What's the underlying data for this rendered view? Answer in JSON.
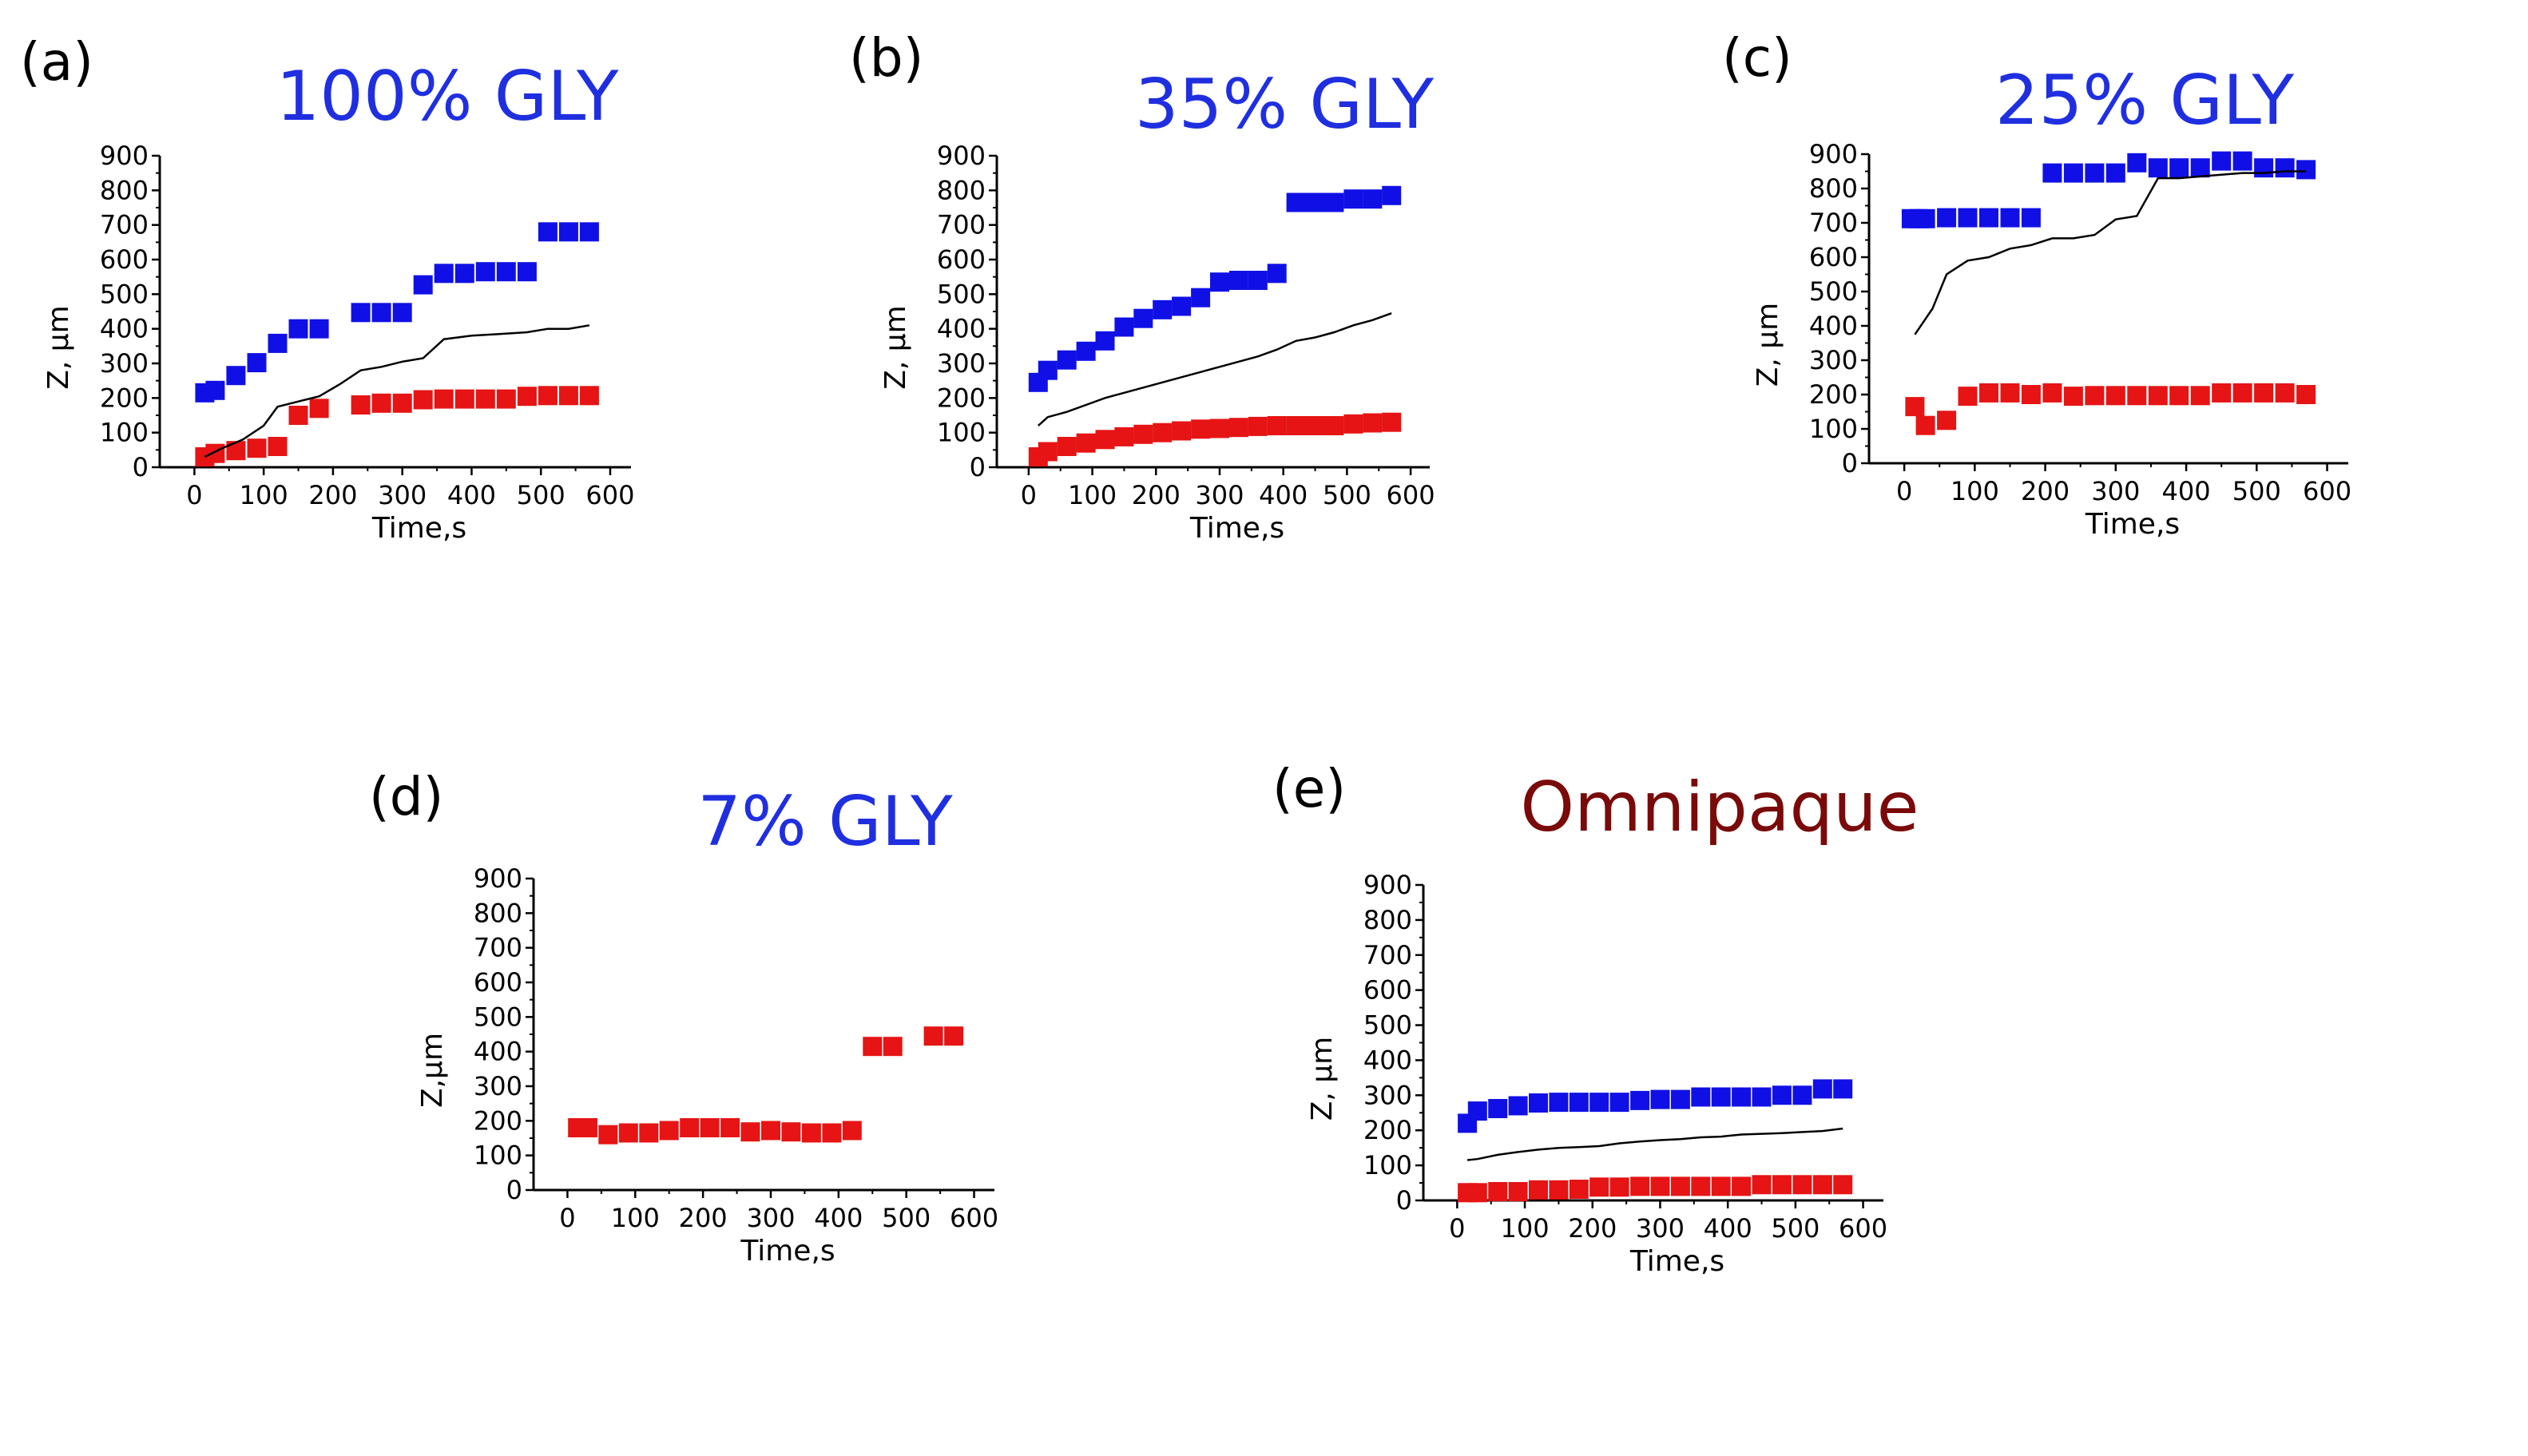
{
  "colors": {
    "blue_series": "#1010e6",
    "red_series": "#e61414",
    "line_series": "#000000",
    "title_blue": "#1f2fe0",
    "title_maroon": "#7a0a0a"
  },
  "chart_data": [
    {
      "type": "scatter",
      "panel": "(a)",
      "title": "100% GLY",
      "title_color": "#1f2fe0",
      "xlabel": "Time,s",
      "ylabel": "Z, µm",
      "xlim": [
        -50,
        630
      ],
      "ylim": [
        0,
        900
      ],
      "xticks": [
        "0",
        "100",
        "200",
        "300",
        "400",
        "500",
        "600"
      ],
      "yticks": [
        "0",
        "100",
        "200",
        "300",
        "400",
        "500",
        "600",
        "700",
        "800",
        "900"
      ],
      "grid": false,
      "series": [
        {
          "name": "upper",
          "kind": "markers",
          "color": "#1010e6",
          "x": [
            15,
            30,
            60,
            90,
            120,
            150,
            180,
            240,
            270,
            300,
            330,
            360,
            390,
            420,
            450,
            480,
            510,
            540,
            570
          ],
          "y": [
            215,
            222,
            265,
            302,
            358,
            400,
            400,
            447,
            447,
            447,
            527,
            560,
            560,
            565,
            565,
            565,
            680,
            680,
            680
          ]
        },
        {
          "name": "lower",
          "kind": "markers",
          "color": "#e61414",
          "x": [
            15,
            30,
            60,
            90,
            120,
            150,
            180,
            240,
            270,
            300,
            330,
            360,
            390,
            420,
            450,
            480,
            510,
            540,
            570
          ],
          "y": [
            30,
            40,
            48,
            55,
            60,
            150,
            170,
            180,
            185,
            185,
            195,
            197,
            197,
            197,
            197,
            205,
            207,
            207,
            207
          ]
        },
        {
          "name": "mean",
          "kind": "line",
          "color": "#000000",
          "x": [
            15,
            40,
            70,
            100,
            120,
            150,
            180,
            210,
            240,
            270,
            300,
            330,
            360,
            400,
            440,
            480,
            510,
            540,
            570
          ],
          "y": [
            30,
            55,
            80,
            120,
            175,
            190,
            205,
            240,
            280,
            290,
            305,
            315,
            370,
            380,
            385,
            390,
            400,
            400,
            410
          ]
        }
      ]
    },
    {
      "type": "scatter",
      "panel": "(b)",
      "title": "35% GLY",
      "title_color": "#1f2fe0",
      "xlabel": "Time,s",
      "ylabel": "Z, µm",
      "xlim": [
        -50,
        630
      ],
      "ylim": [
        0,
        900
      ],
      "xticks": [
        "0",
        "100",
        "200",
        "300",
        "400",
        "500",
        "600"
      ],
      "yticks": [
        "0",
        "100",
        "200",
        "300",
        "400",
        "500",
        "600",
        "700",
        "800",
        "900"
      ],
      "grid": false,
      "series": [
        {
          "name": "upper",
          "kind": "markers",
          "color": "#1010e6",
          "x": [
            15,
            30,
            60,
            90,
            120,
            150,
            180,
            210,
            240,
            270,
            300,
            330,
            360,
            390,
            420,
            450,
            480,
            510,
            540,
            570
          ],
          "y": [
            245,
            280,
            310,
            335,
            365,
            405,
            430,
            455,
            465,
            490,
            535,
            540,
            540,
            560,
            765,
            765,
            765,
            775,
            775,
            785
          ]
        },
        {
          "name": "lower",
          "kind": "markers",
          "color": "#e61414",
          "x": [
            15,
            30,
            60,
            90,
            120,
            150,
            180,
            210,
            240,
            270,
            300,
            330,
            360,
            390,
            420,
            450,
            480,
            510,
            540,
            570
          ],
          "y": [
            30,
            45,
            60,
            70,
            80,
            88,
            95,
            100,
            105,
            110,
            112,
            115,
            118,
            120,
            120,
            120,
            120,
            125,
            128,
            130
          ]
        },
        {
          "name": "mean",
          "kind": "line",
          "color": "#000000",
          "x": [
            15,
            30,
            60,
            90,
            120,
            150,
            180,
            210,
            240,
            270,
            300,
            330,
            360,
            390,
            420,
            450,
            480,
            510,
            540,
            570
          ],
          "y": [
            120,
            145,
            160,
            180,
            200,
            215,
            230,
            245,
            260,
            275,
            290,
            305,
            320,
            340,
            365,
            375,
            390,
            410,
            425,
            445
          ]
        }
      ]
    },
    {
      "type": "scatter",
      "panel": "(c)",
      "title": "25% GLY",
      "title_color": "#1f2fe0",
      "xlabel": "Time,s",
      "ylabel": "Z, µm",
      "xlim": [
        -50,
        630
      ],
      "ylim": [
        0,
        900
      ],
      "xticks": [
        "0",
        "100",
        "200",
        "300",
        "400",
        "500",
        "600"
      ],
      "yticks": [
        "0",
        "100",
        "200",
        "300",
        "400",
        "500",
        "600",
        "700",
        "800",
        "900"
      ],
      "grid": false,
      "series": [
        {
          "name": "upper",
          "kind": "markers",
          "color": "#1010e6",
          "x": [
            10,
            20,
            30,
            60,
            90,
            120,
            150,
            180,
            210,
            240,
            270,
            300,
            330,
            360,
            390,
            420,
            450,
            480,
            510,
            540,
            570
          ],
          "y": [
            712,
            712,
            712,
            715,
            715,
            715,
            715,
            715,
            845,
            845,
            845,
            845,
            875,
            860,
            860,
            860,
            880,
            880,
            860,
            860,
            855
          ]
        },
        {
          "name": "lower",
          "kind": "markers",
          "color": "#e61414",
          "x": [
            15,
            30,
            60,
            90,
            120,
            150,
            180,
            210,
            240,
            270,
            300,
            330,
            360,
            390,
            420,
            450,
            480,
            510,
            540,
            570
          ],
          "y": [
            165,
            110,
            125,
            195,
            205,
            205,
            200,
            205,
            195,
            197,
            197,
            197,
            197,
            197,
            197,
            205,
            205,
            205,
            205,
            200
          ]
        },
        {
          "name": "mean",
          "kind": "line",
          "color": "#000000",
          "x": [
            15,
            40,
            60,
            90,
            120,
            150,
            180,
            210,
            240,
            270,
            300,
            330,
            360,
            390,
            420,
            450,
            480,
            510,
            540,
            570
          ],
          "y": [
            375,
            450,
            550,
            590,
            600,
            625,
            635,
            655,
            655,
            665,
            710,
            720,
            830,
            830,
            835,
            840,
            845,
            845,
            850,
            850
          ]
        }
      ]
    },
    {
      "type": "scatter",
      "panel": "(d)",
      "title": "7% GLY",
      "title_color": "#1f2fe0",
      "xlabel": "Time,s",
      "ylabel": "Z,µm",
      "xlim": [
        -50,
        630
      ],
      "ylim": [
        0,
        900
      ],
      "xticks": [
        "0",
        "100",
        "200",
        "300",
        "400",
        "500",
        "600"
      ],
      "yticks": [
        "0",
        "100",
        "200",
        "300",
        "400",
        "500",
        "600",
        "700",
        "800",
        "900"
      ],
      "grid": false,
      "series": [
        {
          "name": "lower",
          "kind": "markers",
          "color": "#e61414",
          "x": [
            15,
            30,
            60,
            90,
            120,
            150,
            180,
            210,
            240,
            270,
            300,
            330,
            360,
            390,
            420,
            450,
            480,
            540,
            570
          ],
          "y": [
            180,
            180,
            160,
            165,
            165,
            172,
            180,
            180,
            180,
            168,
            172,
            168,
            165,
            165,
            172,
            415,
            415,
            445,
            445
          ]
        }
      ]
    },
    {
      "type": "scatter",
      "panel": "(e)",
      "title": "Omnipaque",
      "title_color": "#7a0a0a",
      "xlabel": "Time,s",
      "ylabel": "Z, µm",
      "xlim": [
        -50,
        630
      ],
      "ylim": [
        0,
        900
      ],
      "xticks": [
        "0",
        "100",
        "200",
        "300",
        "400",
        "500",
        "600"
      ],
      "yticks": [
        "0",
        "100",
        "200",
        "300",
        "400",
        "500",
        "600",
        "700",
        "800",
        "900"
      ],
      "grid": false,
      "series": [
        {
          "name": "upper",
          "kind": "markers",
          "color": "#1010e6",
          "x": [
            15,
            30,
            60,
            90,
            120,
            150,
            180,
            210,
            240,
            270,
            300,
            330,
            360,
            390,
            420,
            450,
            480,
            510,
            540,
            570
          ],
          "y": [
            220,
            255,
            262,
            270,
            278,
            280,
            280,
            280,
            280,
            285,
            288,
            288,
            295,
            295,
            295,
            295,
            300,
            300,
            318,
            318
          ]
        },
        {
          "name": "lower",
          "kind": "markers",
          "color": "#e61414",
          "x": [
            15,
            30,
            60,
            90,
            120,
            150,
            180,
            210,
            240,
            270,
            300,
            330,
            360,
            390,
            420,
            450,
            480,
            510,
            540,
            570
          ],
          "y": [
            22,
            22,
            25,
            25,
            30,
            30,
            32,
            38,
            38,
            40,
            40,
            40,
            40,
            40,
            40,
            45,
            45,
            45,
            45,
            45
          ]
        },
        {
          "name": "mean",
          "kind": "line",
          "color": "#000000",
          "x": [
            15,
            30,
            60,
            90,
            120,
            150,
            180,
            210,
            240,
            270,
            300,
            330,
            360,
            390,
            420,
            450,
            480,
            510,
            540,
            570
          ],
          "y": [
            115,
            118,
            130,
            138,
            145,
            150,
            152,
            155,
            163,
            168,
            172,
            175,
            180,
            182,
            188,
            190,
            192,
            195,
            198,
            205
          ]
        }
      ]
    }
  ]
}
